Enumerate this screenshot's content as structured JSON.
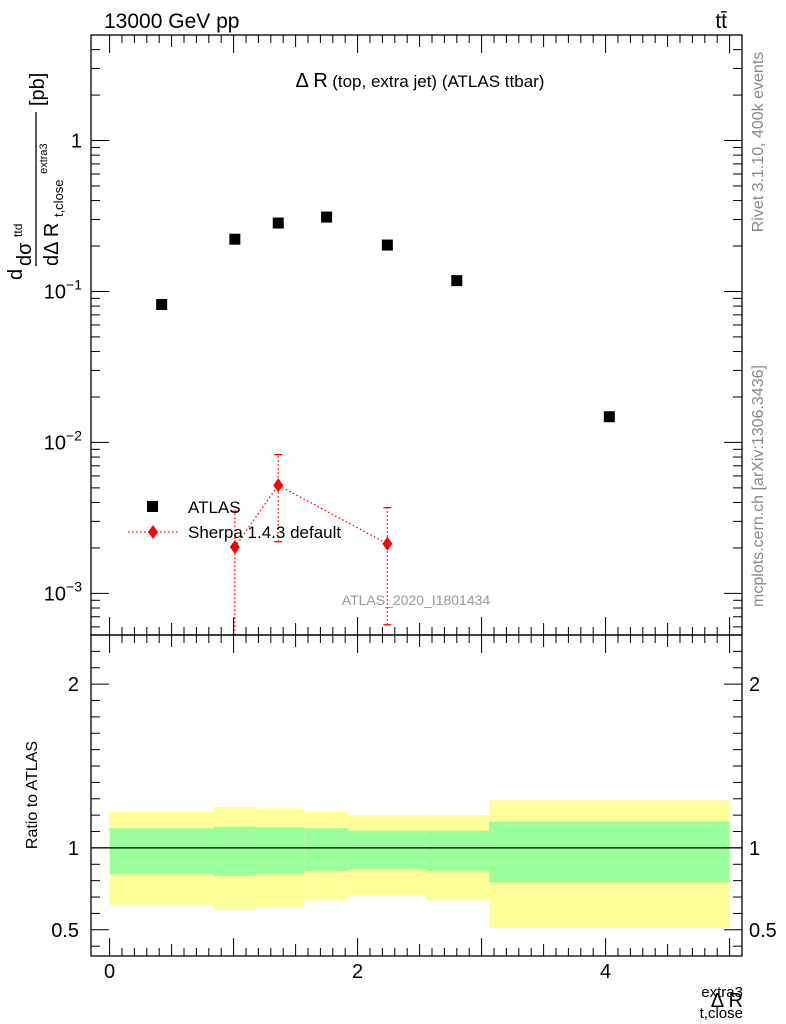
{
  "header": {
    "left": "13000 GeV pp",
    "right": "tt̄"
  },
  "side_labels": {
    "rivet": "Rivet 3.1.10,  400k events",
    "mcplots": "mcplots.cern.ch [arXiv:1306.3436]"
  },
  "colors": {
    "atlas": "#000000",
    "sherpa": "#ff0000",
    "band_inner": "#99ff99",
    "band_outer": "#ffff99"
  },
  "chart_data": [
    {
      "type": "scatter",
      "title_main": "Δ R",
      "title_rest": "(top, extra jet) (ATLAS ttbar)",
      "watermark": "ATLAS_2020_I1801434",
      "ylabel": {
        "main": "dσ",
        "sup": "ttd",
        "den_prefix": "dΔ R",
        "den_sub": "t,close",
        "den_sup": "extra3",
        "unit": "[pb]"
      },
      "xlim": [
        -0.15,
        5.1
      ],
      "ylim": [
        0.00053,
        5.0
      ],
      "yscale": "log",
      "y_tick_labels": [
        {
          "value": 1,
          "base": "1",
          "exp": ""
        },
        {
          "value": 0.1,
          "base": "10",
          "exp": "−1"
        },
        {
          "value": 0.01,
          "base": "10",
          "exp": "−2"
        },
        {
          "value": 0.001,
          "base": "10",
          "exp": "−3"
        }
      ],
      "legend_position": "bottom-left",
      "series": [
        {
          "name": "ATLAS",
          "marker": "square",
          "points": [
            {
              "x": 0.42,
              "y": 0.082
            },
            {
              "x": 1.01,
              "y": 0.222
            },
            {
              "x": 1.36,
              "y": 0.284
            },
            {
              "x": 1.75,
              "y": 0.311
            },
            {
              "x": 2.24,
              "y": 0.203
            },
            {
              "x": 2.8,
              "y": 0.118
            },
            {
              "x": 4.03,
              "y": 0.0148
            }
          ]
        },
        {
          "name": "Sherpa 1.4.3 default",
          "marker": "diamond",
          "line": "dotted",
          "points": [
            {
              "x": 1.01,
              "y": 0.00203,
              "ylo": 0.00053,
              "yhi": 0.0035
            },
            {
              "x": 1.36,
              "y": 0.0052,
              "ylo": 0.0022,
              "yhi": 0.0083
            },
            {
              "x": 2.24,
              "y": 0.00213,
              "ylo": 0.00062,
              "yhi": 0.0037
            }
          ]
        }
      ]
    },
    {
      "type": "area",
      "ylabel": "Ratio to ATLAS",
      "xlabel": {
        "main": "Δ R",
        "sub": "t,close",
        "sup": "extra3"
      },
      "xlim": [
        -0.15,
        5.1
      ],
      "ylim": [
        0.34,
        2.3
      ],
      "x_ticks": [
        0,
        2,
        4
      ],
      "y_ticks": [
        0.5,
        1,
        2
      ],
      "reference": 1,
      "bands": [
        {
          "x0": 0.0,
          "x1": 0.84,
          "inner": [
            0.84,
            1.12
          ],
          "outer": [
            0.65,
            1.22
          ]
        },
        {
          "x0": 0.84,
          "x1": 1.18,
          "inner": [
            0.83,
            1.13
          ],
          "outer": [
            0.62,
            1.25
          ]
        },
        {
          "x0": 1.18,
          "x1": 1.57,
          "inner": [
            0.84,
            1.125
          ],
          "outer": [
            0.64,
            1.24
          ]
        },
        {
          "x0": 1.57,
          "x1": 1.93,
          "inner": [
            0.86,
            1.12
          ],
          "outer": [
            0.68,
            1.22
          ]
        },
        {
          "x0": 1.93,
          "x1": 2.55,
          "inner": [
            0.87,
            1.105
          ],
          "outer": [
            0.71,
            1.2
          ]
        },
        {
          "x0": 2.55,
          "x1": 3.06,
          "inner": [
            0.86,
            1.105
          ],
          "outer": [
            0.68,
            1.2
          ]
        },
        {
          "x0": 3.06,
          "x1": 5.0,
          "inner": [
            0.79,
            1.16
          ],
          "outer": [
            0.51,
            1.29
          ]
        }
      ]
    }
  ]
}
